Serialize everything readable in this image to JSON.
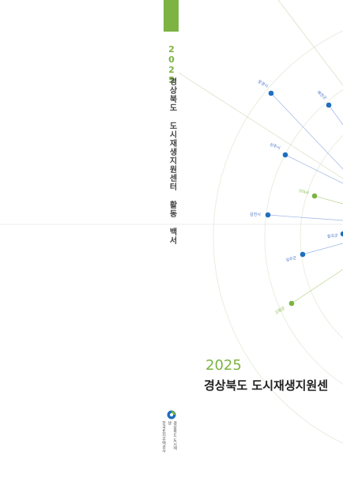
{
  "spine": {
    "year": "2025",
    "title": "경상북도 도시재생지원센터 활동 백서",
    "logo_text_line1": "경상북도 도시재생",
    "logo_text_line2": "한국토지주택공사"
  },
  "front": {
    "year": "2025",
    "title": "경상북도 도시재생지원센"
  },
  "nodes": [
    {
      "label": "문경시",
      "color": "#1f6fbf",
      "label_color": "#4b74c9"
    },
    {
      "label": "예천군",
      "color": "#1f6fbf",
      "label_color": "#4b74c9"
    },
    {
      "label": "상주시",
      "color": "#1f6fbf",
      "label_color": "#4b74c9"
    },
    {
      "label": "구미시",
      "color": "#7cb342",
      "label_color": "#7cb342"
    },
    {
      "label": "김천시",
      "color": "#1f6fbf",
      "label_color": "#4b74c9"
    },
    {
      "label": "칠곡군",
      "color": "#1f6fbf",
      "label_color": "#4b74c9"
    },
    {
      "label": "성주군",
      "color": "#1f6fbf",
      "label_color": "#4b74c9"
    },
    {
      "label": "고령군",
      "color": "#7cb342",
      "label_color": "#7cb342"
    }
  ],
  "colors": {
    "accent_green": "#7cb342",
    "accent_blue": "#1f6fbf",
    "text_dark": "#222222"
  }
}
